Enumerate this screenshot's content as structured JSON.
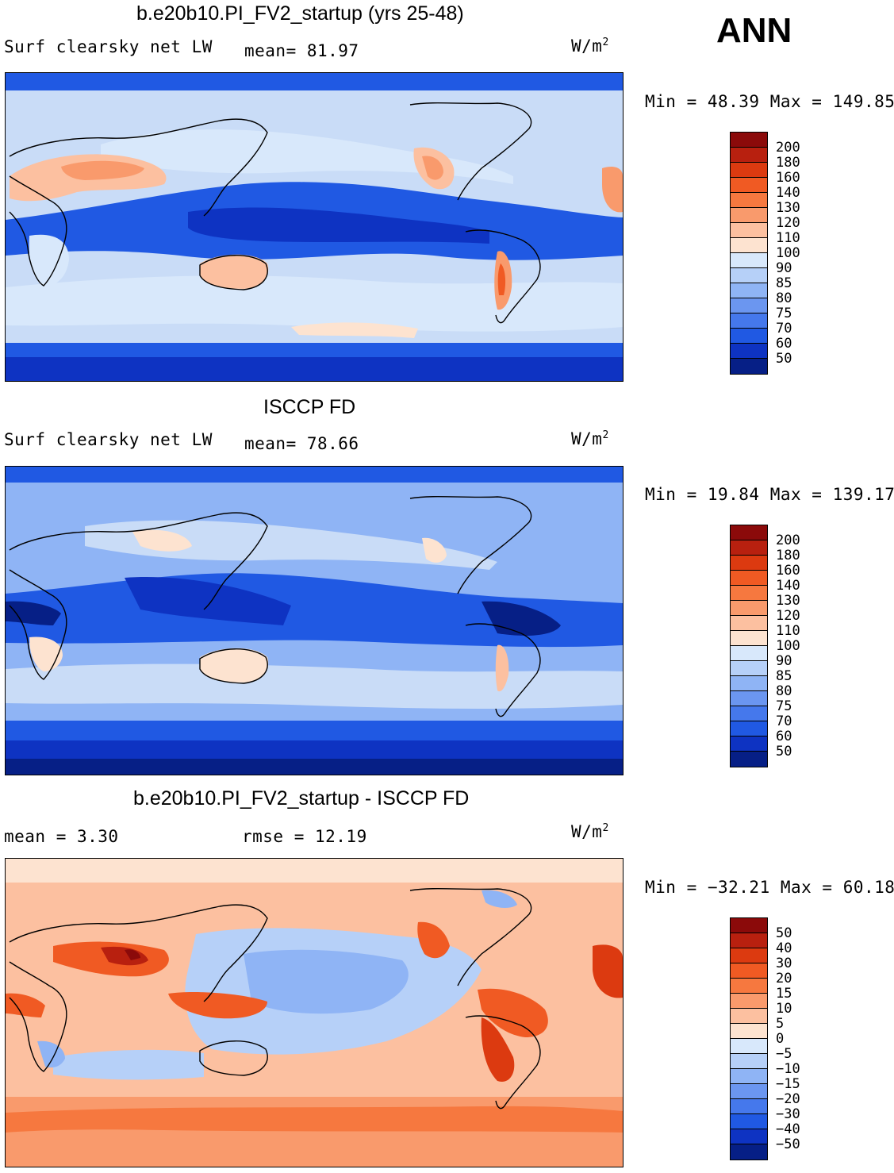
{
  "header": {
    "season": "ANN"
  },
  "panels": [
    {
      "title": "b.e20b10.PI_FV2_startup (yrs 25-48)",
      "variable": "Surf clearsky net LW",
      "stat1": "mean=  81.97",
      "stat2": "",
      "units": "W/m",
      "units_sup": "2",
      "minmax": "Min =  48.39 Max = 149.85",
      "levels": [
        "200",
        "180",
        "160",
        "140",
        "130",
        "120",
        "110",
        "100",
        "90",
        "85",
        "80",
        "75",
        "70",
        "60",
        "50"
      ],
      "colors": [
        "#8b0a0a",
        "#b8200f",
        "#dc3a10",
        "#f05a23",
        "#f6783f",
        "#f99a6c",
        "#fcc0a0",
        "#fde3d0",
        "#d8e8fb",
        "#b6d0f8",
        "#8fb4f5",
        "#6b96f0",
        "#4578ec",
        "#2059e3",
        "#0e33c2",
        "#061f86"
      ]
    },
    {
      "title": "ISCCP FD",
      "variable": "Surf clearsky net LW",
      "stat1": "mean=  78.66",
      "stat2": "",
      "units": "W/m",
      "units_sup": "2",
      "minmax": "Min =  19.84 Max = 139.17",
      "levels": [
        "200",
        "180",
        "160",
        "140",
        "130",
        "120",
        "110",
        "100",
        "90",
        "85",
        "80",
        "75",
        "70",
        "60",
        "50"
      ],
      "colors": [
        "#8b0a0a",
        "#b8200f",
        "#dc3a10",
        "#f05a23",
        "#f6783f",
        "#f99a6c",
        "#fcc0a0",
        "#fde3d0",
        "#d8e8fb",
        "#b6d0f8",
        "#8fb4f5",
        "#6b96f0",
        "#4578ec",
        "#2059e3",
        "#0e33c2",
        "#061f86"
      ]
    },
    {
      "title": "b.e20b10.PI_FV2_startup - ISCCP FD",
      "variable": "",
      "stat1": "mean =   3.30",
      "stat2": "rmse =   12.19",
      "units": "W/m",
      "units_sup": "2",
      "minmax": "Min = −32.21 Max =  60.18",
      "levels": [
        "50",
        "40",
        "30",
        "20",
        "15",
        "10",
        "5",
        "0",
        "−5",
        "−10",
        "−15",
        "−20",
        "−30",
        "−40",
        "−50"
      ],
      "colors": [
        "#8b0a0a",
        "#b8200f",
        "#dc3a10",
        "#f05a23",
        "#f6783f",
        "#f99a6c",
        "#fcc0a0",
        "#fde3d0",
        "#d8e8fb",
        "#b6d0f8",
        "#8fb4f5",
        "#6b96f0",
        "#4578ec",
        "#2059e3",
        "#0e33c2",
        "#061f86"
      ]
    }
  ]
}
